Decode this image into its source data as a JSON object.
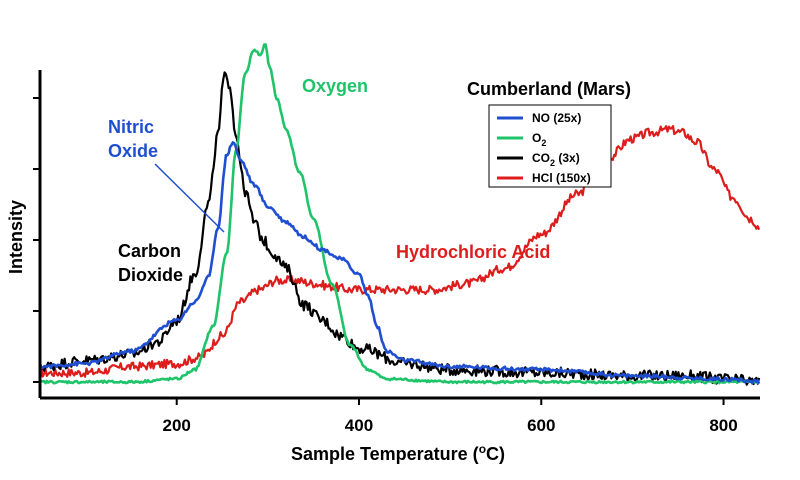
{
  "chart_data": {
    "type": "line",
    "title": "Cumberland (Mars)",
    "xlabel": "Sample Temperature (°C)",
    "xlabel_parts": {
      "prefix": "Sample Temperature (",
      "sup": "o",
      "suffix": "C)"
    },
    "ylabel": "Intensity",
    "xlim": [
      50,
      840
    ],
    "ylim": [
      0,
      1.1
    ],
    "x_ticks": [
      200,
      400,
      600,
      800
    ],
    "x_tick_labels": [
      "200",
      "400",
      "600",
      "800"
    ],
    "y_tick_count": 5,
    "grid": false,
    "legend_position": "top-right",
    "colors": {
      "no": "#1f4fd0",
      "o2": "#1fc46a",
      "co2": "#000000",
      "hcl": "#dd1c1c"
    },
    "legend": [
      {
        "id": "no",
        "label": "NO (25x)"
      },
      {
        "id": "o2",
        "label": "O",
        "sub": "2"
      },
      {
        "id": "co2",
        "label": "CO",
        "sub": "2",
        "suffix": " (3x)"
      },
      {
        "id": "hcl",
        "label": "HCl (150x)"
      }
    ],
    "annotations": {
      "oxygen": "Oxygen",
      "nitric_line1": "Nitric",
      "nitric_line2": "Oxide",
      "carbon_line1": "Carbon",
      "carbon_line2": "Dioxide",
      "hcl": "Hydrochloric Acid"
    },
    "series": [
      {
        "id": "co2",
        "name": "CO2 (3x)",
        "x": [
          50,
          100,
          150,
          180,
          200,
          220,
          235,
          245,
          252,
          258,
          265,
          275,
          285,
          295,
          305,
          320,
          340,
          360,
          380,
          400,
          450,
          500,
          600,
          700,
          760,
          800,
          840
        ],
        "y": [
          0.05,
          0.07,
          0.09,
          0.13,
          0.2,
          0.35,
          0.58,
          0.8,
          0.99,
          0.97,
          0.8,
          0.62,
          0.52,
          0.46,
          0.42,
          0.37,
          0.25,
          0.2,
          0.15,
          0.11,
          0.06,
          0.04,
          0.03,
          0.02,
          0.02,
          0.01,
          0.0
        ]
      },
      {
        "id": "no",
        "name": "NO (25x)",
        "x": [
          50,
          100,
          150,
          200,
          220,
          235,
          245,
          255,
          262,
          270,
          285,
          300,
          320,
          340,
          360,
          380,
          400,
          410,
          420,
          430,
          450,
          500,
          600,
          700,
          800,
          840
        ],
        "y": [
          0.05,
          0.06,
          0.1,
          0.2,
          0.26,
          0.34,
          0.5,
          0.74,
          0.78,
          0.72,
          0.64,
          0.57,
          0.52,
          0.47,
          0.43,
          0.4,
          0.35,
          0.28,
          0.18,
          0.1,
          0.07,
          0.05,
          0.04,
          0.02,
          0.01,
          0.0
        ]
      },
      {
        "id": "o2",
        "name": "O2",
        "x": [
          50,
          150,
          200,
          220,
          240,
          255,
          265,
          275,
          285,
          292,
          297,
          302,
          310,
          320,
          335,
          350,
          370,
          390,
          410,
          430,
          500,
          600,
          700,
          840
        ],
        "y": [
          0.0,
          0.0,
          0.01,
          0.04,
          0.18,
          0.42,
          0.75,
          1.0,
          1.08,
          1.06,
          1.1,
          1.02,
          0.92,
          0.82,
          0.68,
          0.53,
          0.32,
          0.12,
          0.04,
          0.01,
          0.0,
          0.0,
          0.0,
          0.0
        ]
      },
      {
        "id": "hcl",
        "name": "HCl (150x)",
        "x": [
          50,
          100,
          150,
          200,
          225,
          250,
          270,
          290,
          310,
          330,
          350,
          370,
          390,
          420,
          450,
          480,
          520,
          560,
          600,
          640,
          670,
          700,
          720,
          740,
          755,
          770,
          790,
          810,
          830,
          840
        ],
        "y": [
          0.03,
          0.03,
          0.05,
          0.06,
          0.08,
          0.15,
          0.26,
          0.3,
          0.33,
          0.33,
          0.32,
          0.31,
          0.3,
          0.3,
          0.3,
          0.3,
          0.32,
          0.37,
          0.48,
          0.61,
          0.72,
          0.79,
          0.81,
          0.82,
          0.81,
          0.78,
          0.69,
          0.6,
          0.53,
          0.5
        ]
      }
    ]
  }
}
